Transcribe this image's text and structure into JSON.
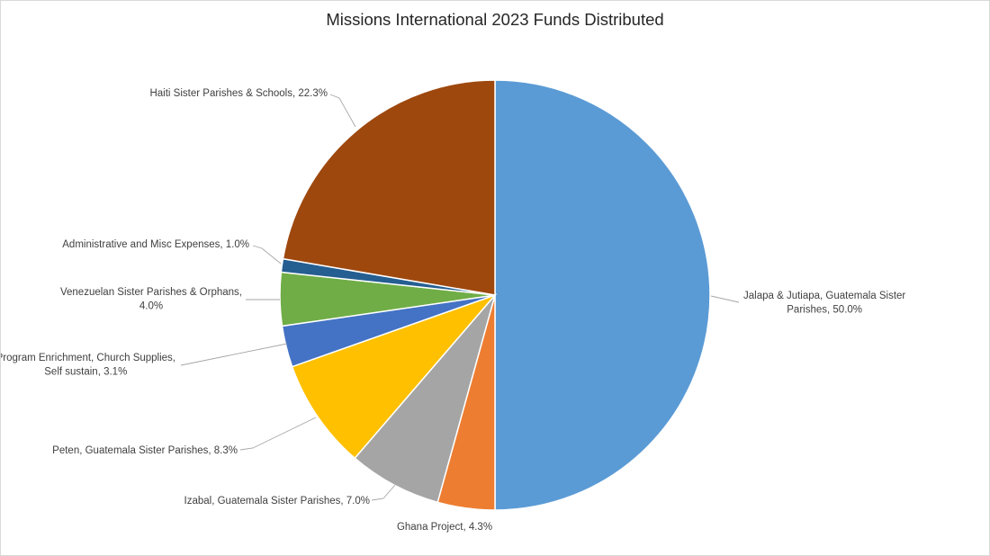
{
  "chart_data": {
    "type": "pie",
    "title": "Missions International 2023 Funds Distributed",
    "slices": [
      {
        "label_lines": [
          "Jalapa & Jutiapa, Guatemala Sister",
          "Parishes, 50.0%"
        ],
        "category": "Jalapa & Jutiapa, Guatemala Sister Parishes",
        "value": 50.0,
        "color": "#5b9bd5"
      },
      {
        "label_lines": [
          "Ghana Project, 4.3%"
        ],
        "category": "Ghana Project",
        "value": 4.3,
        "color": "#ed7d31"
      },
      {
        "label_lines": [
          "Izabal, Guatemala Sister Parishes, 7.0%"
        ],
        "category": "Izabal, Guatemala Sister Parishes",
        "value": 7.0,
        "color": "#a5a5a5"
      },
      {
        "label_lines": [
          "Peten, Guatemala Sister Parishes, 8.3%"
        ],
        "category": "Peten, Guatemala Sister Parishes",
        "value": 8.3,
        "color": "#ffc000"
      },
      {
        "label_lines": [
          "Program Enrichment, Church Supplies,",
          "Self sustain, 3.1%"
        ],
        "category": "Program Enrichment, Church Supplies, Self sustain",
        "value": 3.1,
        "color": "#4472c4"
      },
      {
        "label_lines": [
          "Venezuelan Sister Parishes & Orphans,",
          "4.0%"
        ],
        "category": "Venezuelan Sister Parishes & Orphans",
        "value": 4.0,
        "color": "#70ad47"
      },
      {
        "label_lines": [
          "Administrative and Misc Expenses, 1.0%"
        ],
        "category": "Administrative and Misc Expenses",
        "value": 1.0,
        "color": "#255e91"
      },
      {
        "label_lines": [
          "Haiti Sister Parishes & Schools, 22.3%"
        ],
        "category": "Haiti Sister Parishes & Schools",
        "value": 22.3,
        "color": "#9e480e"
      }
    ],
    "legend": "none",
    "data_labels": "outside with leader lines"
  }
}
